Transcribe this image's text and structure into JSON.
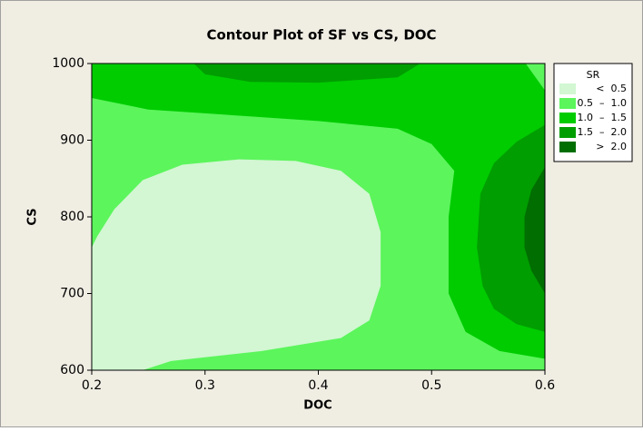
{
  "chart_data": {
    "type": "contour",
    "title": "Contour Plot of SF vs  CS, DOC",
    "x_label": "DOC",
    "y_label": "CS",
    "xlim": [
      0.2,
      0.6
    ],
    "ylim": [
      600,
      1000
    ],
    "xticks": [
      0.2,
      0.3,
      0.4,
      0.5,
      0.6
    ],
    "yticks": [
      600,
      700,
      800,
      900,
      1000
    ],
    "legend_title": "SR",
    "legend_position": "right",
    "levels": [
      {
        "name": "<  0.5",
        "color": "#d2f7d2"
      },
      {
        "name": "0.5  –  1.0",
        "color": "#5cf55c"
      },
      {
        "name": "1.0  –  1.5",
        "color": "#00cc00"
      },
      {
        "name": "1.5  –  2.0",
        "color": "#009e00"
      },
      {
        "name": ">  2.0",
        "color": "#006e00"
      }
    ],
    "regions": [
      {
        "color": "#5cf55c",
        "x": [
          0.2,
          0.6,
          0.6,
          0.2
        ],
        "y": [
          600,
          600,
          1000,
          1000
        ]
      },
      {
        "color": "#00cc00",
        "x": [
          0.2,
          0.583,
          0.6,
          0.6,
          0.56,
          0.53,
          0.515,
          0.515,
          0.52,
          0.5,
          0.47,
          0.4,
          0.3,
          0.25,
          0.2
        ],
        "y": [
          1000,
          1000,
          965,
          615,
          625,
          650,
          700,
          800,
          860,
          895,
          915,
          925,
          935,
          940,
          955
        ]
      },
      {
        "color": "#009e00",
        "x": [
          0.29,
          0.49,
          0.47,
          0.4,
          0.34,
          0.3
        ],
        "y": [
          1000,
          1000,
          982,
          975,
          976,
          986
        ]
      },
      {
        "color": "#009e00",
        "x": [
          0.6,
          0.575,
          0.555,
          0.543,
          0.54,
          0.545,
          0.555,
          0.575,
          0.6
        ],
        "y": [
          920,
          898,
          870,
          830,
          760,
          710,
          680,
          660,
          650
        ]
      },
      {
        "color": "#006e00",
        "x": [
          0.6,
          0.588,
          0.582,
          0.582,
          0.588,
          0.6
        ],
        "y": [
          865,
          835,
          800,
          760,
          730,
          700
        ]
      },
      {
        "color": "#d2f7d2",
        "x": [
          0.2,
          0.245,
          0.27,
          0.35,
          0.42,
          0.445,
          0.455,
          0.455,
          0.445,
          0.42,
          0.38,
          0.33,
          0.28,
          0.245,
          0.22,
          0.205,
          0.2
        ],
        "y": [
          600,
          600,
          612,
          625,
          642,
          665,
          710,
          780,
          830,
          860,
          873,
          875,
          868,
          848,
          810,
          775,
          760
        ]
      }
    ]
  }
}
